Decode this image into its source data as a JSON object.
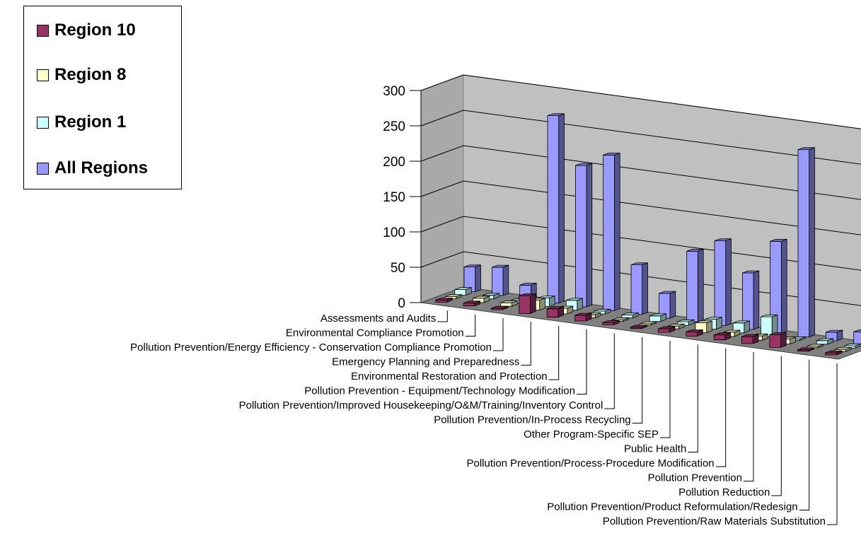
{
  "chart_data": {
    "type": "bar",
    "subtype": "3d-clustered-column",
    "title": "",
    "xlabel": "",
    "ylabel": "",
    "ylim": [
      0,
      300
    ],
    "yticks": [
      "0",
      "50",
      "100",
      "150",
      "200",
      "250",
      "300"
    ],
    "grid": true,
    "legend_position": "top-left",
    "categories": [
      "Assessments and Audits",
      "Environmental Compliance Promotion",
      "Pollution Prevention/Energy Efficiency - Conservation Compliance Promotion",
      "Emergency Planning and Preparedness",
      "Environmental Restoration and Protection",
      "Pollution Prevention - Equipment/Technology Modification",
      "Pollution Prevention/Improved Housekeeping/O&M/Training/Inventory Control",
      "Pollution Prevention/In-Process Recycling",
      "Other Program-Specific SEP",
      "Public Health",
      "Pollution Prevention/Process-Procedure Modification",
      "Pollution Prevention",
      "Pollution Reduction",
      "Pollution Prevention/Product Reformulation/Redesign",
      "Pollution Prevention/Raw Materials Substitution"
    ],
    "series": [
      {
        "name": "Region 10",
        "color": "#993366",
        "values": [
          3,
          4,
          2,
          25,
          12,
          8,
          3,
          2,
          5,
          6,
          7,
          10,
          18,
          2,
          3
        ]
      },
      {
        "name": "Region 8",
        "color": "#ffffcc",
        "values": [
          3,
          6,
          5,
          14,
          8,
          4,
          2,
          2,
          4,
          14,
          6,
          6,
          7,
          2,
          3
        ]
      },
      {
        "name": "Region 1",
        "color": "#ccffff",
        "values": [
          8,
          5,
          3,
          12,
          14,
          4,
          4,
          8,
          5,
          14,
          14,
          28,
          2,
          5,
          3
        ]
      },
      {
        "name": "All Regions",
        "color": "#9999ff",
        "values": [
          35,
          40,
          20,
          265,
          200,
          220,
          70,
          35,
          100,
          120,
          80,
          130,
          265,
          12,
          18
        ]
      }
    ]
  }
}
